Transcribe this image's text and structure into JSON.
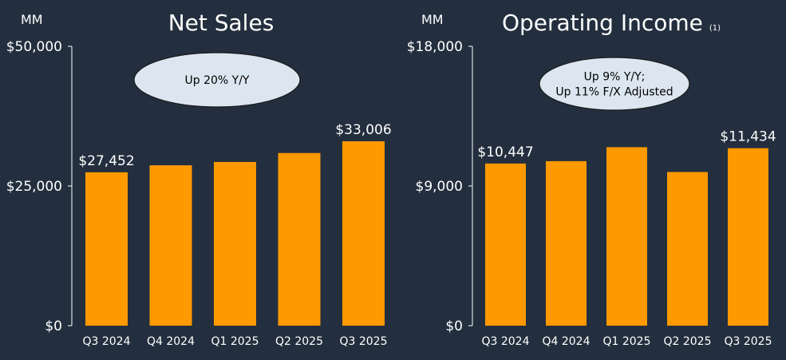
{
  "colors": {
    "background": "#232f3e",
    "bar": "#ff9900",
    "text": "#ffffff",
    "callout_fill": "#dbe6f0",
    "callout_text": "#000000"
  },
  "chart_data": [
    {
      "type": "bar",
      "title": "Net Sales",
      "title_note": "",
      "unit": "MM",
      "categories": [
        "Q3 2024",
        "Q4 2024",
        "Q1 2025",
        "Q2 2025",
        "Q3 2025"
      ],
      "values": [
        27452,
        28700,
        29300,
        30900,
        33006
      ],
      "data_labels": [
        "$27,452",
        "",
        "",
        "",
        "$33,006"
      ],
      "ylim": [
        0,
        50000
      ],
      "yticks": [
        0,
        25000,
        50000
      ],
      "ytick_labels": [
        "$0",
        "$25,000",
        "$50,000"
      ],
      "callout": [
        "Up 20% Y/Y"
      ],
      "grid": false
    },
    {
      "type": "bar",
      "title": "Operating Income",
      "title_note": "(1)",
      "unit": "MM",
      "categories": [
        "Q3 2024",
        "Q4 2024",
        "Q1 2025",
        "Q2 2025",
        "Q3 2025"
      ],
      "values": [
        10447,
        10600,
        11500,
        9900,
        11434
      ],
      "data_labels": [
        "$10,447",
        "",
        "",
        "",
        "$11,434"
      ],
      "ylim": [
        0,
        18000
      ],
      "yticks": [
        0,
        9000,
        18000
      ],
      "ytick_labels": [
        "$0",
        "$9,000",
        "$18,000"
      ],
      "callout": [
        "Up 9% Y/Y;",
        "Up 11% F/X Adjusted"
      ],
      "grid": false
    }
  ]
}
